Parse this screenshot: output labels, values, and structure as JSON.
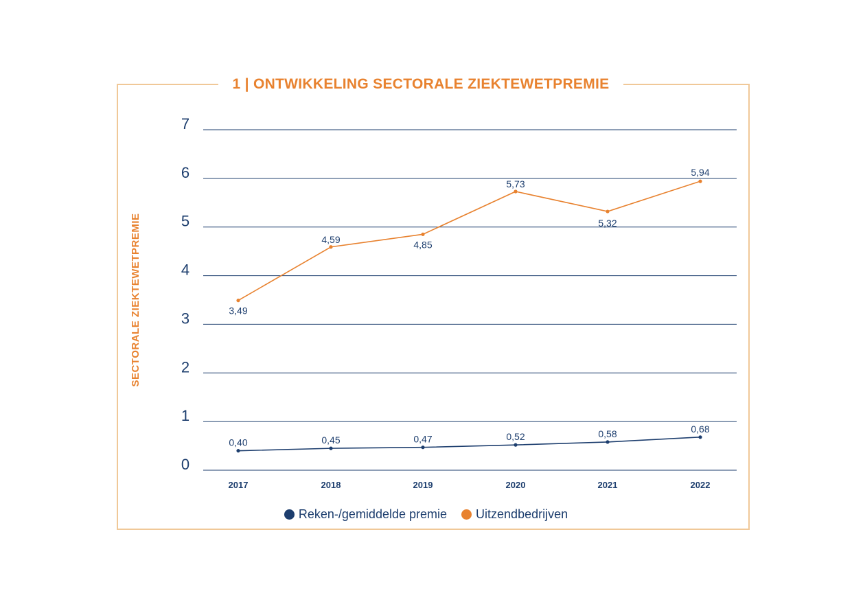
{
  "chart_data": {
    "type": "line",
    "title": "1 | ONTWIKKELING SECTORALE ZIEKTEWETPREMIE",
    "ylabel": "SECTORALE ZIEKTEWETPREMIE",
    "xlabel": "",
    "ylim": [
      0,
      7
    ],
    "yticks": [
      "0",
      "1",
      "2",
      "3",
      "4",
      "5",
      "6",
      "7"
    ],
    "categories": [
      "2017",
      "2018",
      "2019",
      "2020",
      "2021",
      "2022"
    ],
    "grid": true,
    "legend_position": "bottom",
    "series": [
      {
        "name": "Reken-/gemiddelde premie",
        "color": "#1d3e6e",
        "values": [
          0.4,
          0.45,
          0.47,
          0.52,
          0.58,
          0.68
        ],
        "labels": [
          "0,40",
          "0,45",
          "0,47",
          "0,52",
          "0,58",
          "0,68"
        ]
      },
      {
        "name": "Uitzendbedrijven",
        "color": "#e8822f",
        "values": [
          3.49,
          4.59,
          4.85,
          5.73,
          5.32,
          5.94
        ],
        "labels": [
          "3,49",
          "4,59",
          "4,85",
          "5,73",
          "5,32",
          "5,94"
        ]
      }
    ]
  }
}
